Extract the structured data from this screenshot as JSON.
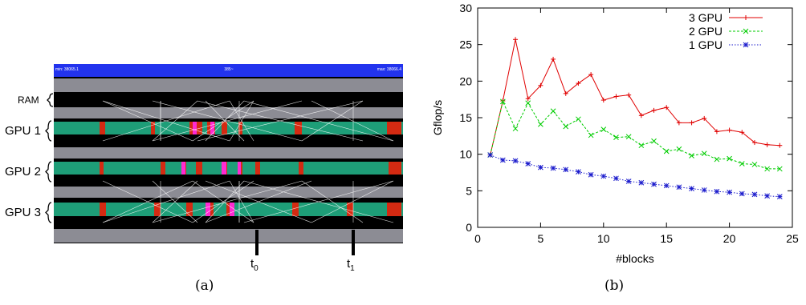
{
  "panel_a": {
    "caption": "(a)",
    "header_left": "min: 38065.1",
    "header_mid": "385~",
    "header_right": "max: 38066.4",
    "rows": [
      "RAM",
      "GPU 1",
      "GPU 2",
      "GPU 3"
    ],
    "markers": [
      {
        "label": "t",
        "sub": "0"
      },
      {
        "label": "t",
        "sub": "1"
      }
    ],
    "colors": {
      "header": "#2233ee",
      "band": "#8c8c94",
      "bar": "#1e9e78",
      "busy": "#d42a12",
      "kernel": "#ff2ad2",
      "bg": "#000000"
    }
  },
  "chart_data": {
    "type": "line",
    "caption": "(b)",
    "xlabel": "#blocks",
    "ylabel": "Gflop/s",
    "xlim": [
      0,
      25
    ],
    "ylim": [
      0,
      30
    ],
    "xticks": [
      0,
      5,
      10,
      15,
      20,
      25
    ],
    "yticks": [
      0,
      5,
      10,
      15,
      20,
      25,
      30
    ],
    "grid": false,
    "legend_position": "top-right",
    "x": [
      1,
      2,
      3,
      4,
      5,
      6,
      7,
      8,
      9,
      10,
      11,
      12,
      13,
      14,
      15,
      16,
      17,
      18,
      19,
      20,
      21,
      22,
      23,
      24
    ],
    "series": [
      {
        "name": "3 GPU",
        "color": "#e00000",
        "marker": "plus",
        "values": [
          9.9,
          17.3,
          25.7,
          17.6,
          19.4,
          23.0,
          18.3,
          19.7,
          20.9,
          17.4,
          17.9,
          18.1,
          15.3,
          16.0,
          16.4,
          14.3,
          14.3,
          14.9,
          13.1,
          13.3,
          13.0,
          11.6,
          11.3,
          11.2
        ]
      },
      {
        "name": "2 GPU",
        "color": "#00cc00",
        "marker": "x",
        "values": [
          9.9,
          17.2,
          13.5,
          17.0,
          14.1,
          15.9,
          13.8,
          14.8,
          12.6,
          13.4,
          12.3,
          12.4,
          11.2,
          11.8,
          10.4,
          10.7,
          9.8,
          10.1,
          9.3,
          9.4,
          8.7,
          8.6,
          8.0,
          8.0
        ]
      },
      {
        "name": "1 GPU",
        "color": "#1a1acc",
        "marker": "star",
        "values": [
          9.9,
          9.2,
          9.1,
          8.7,
          8.2,
          8.1,
          7.9,
          7.6,
          7.2,
          7.0,
          6.7,
          6.3,
          6.1,
          5.9,
          5.7,
          5.5,
          5.3,
          5.1,
          4.9,
          4.8,
          4.6,
          4.5,
          4.3,
          4.2
        ]
      }
    ]
  }
}
